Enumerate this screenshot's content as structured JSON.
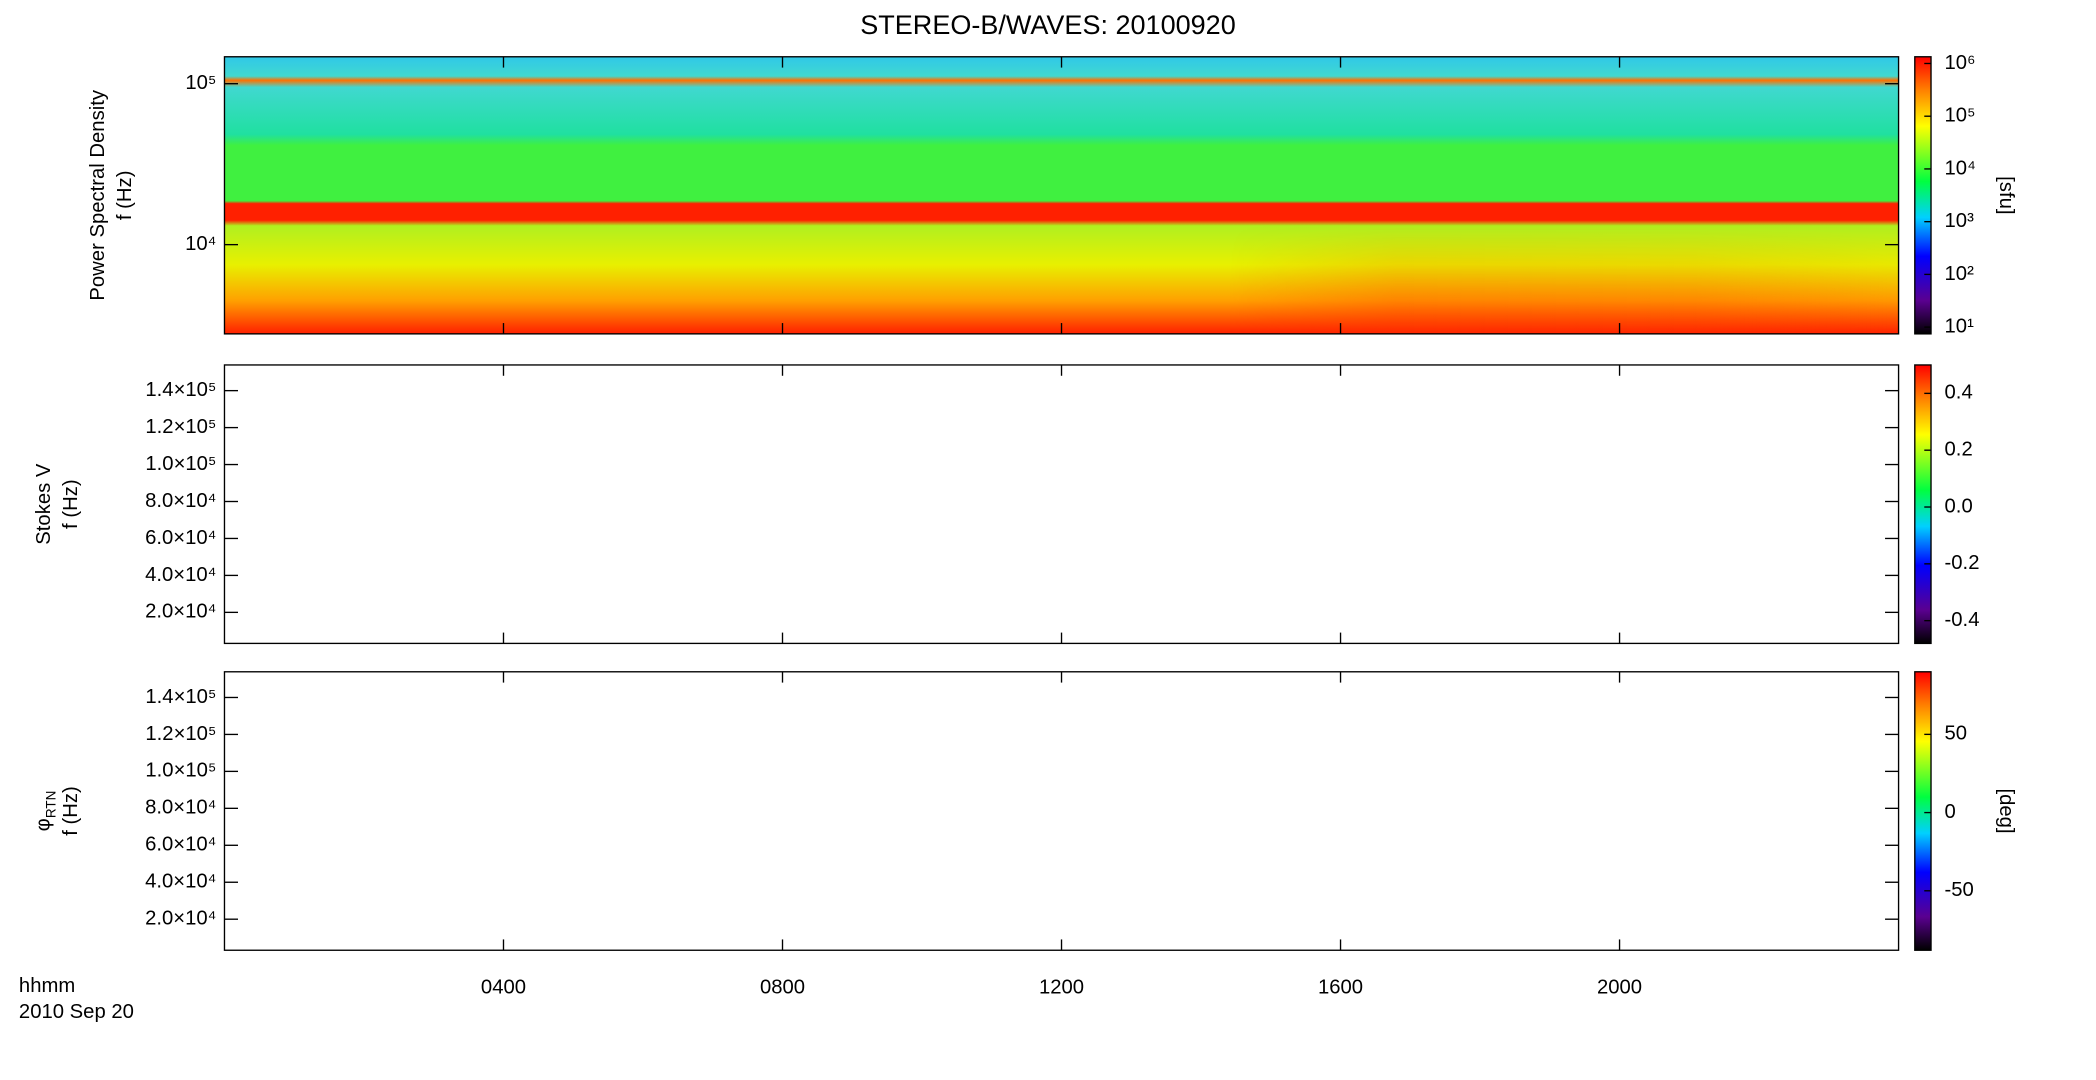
{
  "title": "STEREO-B/WAVES: 20100920",
  "time_axis": {
    "label": "hhmm",
    "date": "2010 Sep 20",
    "xlim": [
      0,
      24
    ],
    "xticks": [
      {
        "value": 4,
        "label": "0400"
      },
      {
        "value": 8,
        "label": "0800"
      },
      {
        "value": 12,
        "label": "1200"
      },
      {
        "value": 16,
        "label": "1600"
      },
      {
        "value": 20,
        "label": "2000"
      }
    ]
  },
  "chart_data": [
    {
      "type": "heatmap",
      "ylabel": [
        "Power Spectral Density",
        "f (Hz)"
      ],
      "log_scale": true,
      "ylim": [
        2790,
        147000
      ],
      "yticks": [
        {
          "value": 10000,
          "label": "10⁴"
        },
        {
          "value": 100000,
          "label": "10⁵"
        }
      ],
      "colorbar": {
        "log_scale": true,
        "clim": [
          7.45,
          1340000
        ],
        "label": "[sfu]",
        "ticks": [
          {
            "value": 10,
            "label": "10¹"
          },
          {
            "value": 100,
            "label": "10²"
          },
          {
            "value": 1000,
            "label": "10³"
          },
          {
            "value": 10000,
            "label": "10⁴"
          },
          {
            "value": 100000,
            "label": "10⁵"
          },
          {
            "value": 1000000,
            "label": "10⁶"
          }
        ]
      }
    },
    {
      "type": "heatmap",
      "ylabel": [
        "Stokes V",
        "f (Hz)"
      ],
      "log_scale": false,
      "ylim": [
        3200,
        153900
      ],
      "yticks": [
        {
          "value": 20000,
          "label": "2.0×10⁴"
        },
        {
          "value": 40000,
          "label": "4.0×10⁴"
        },
        {
          "value": 60000,
          "label": "6.0×10⁴"
        },
        {
          "value": 80000,
          "label": "8.0×10⁴"
        },
        {
          "value": 100000,
          "label": "1.0×10⁵"
        },
        {
          "value": 120000,
          "label": "1.2×10⁵"
        },
        {
          "value": 140000,
          "label": "1.4×10⁵"
        }
      ],
      "colorbar": {
        "log_scale": false,
        "clim": [
          -0.48,
          0.5
        ],
        "ticks": [
          {
            "value": -0.4,
            "label": "-0.4"
          },
          {
            "value": -0.2,
            "label": "-0.2"
          },
          {
            "value": 0,
            "label": "0.0"
          },
          {
            "value": 0.2,
            "label": "0.2"
          },
          {
            "value": 0.4,
            "label": "0.4"
          }
        ]
      }
    },
    {
      "type": "heatmap",
      "ylabel_symbol": "φ",
      "ylabel_subscript": "RTN",
      "ylabel": [
        "f (Hz)"
      ],
      "log_scale": false,
      "ylim": [
        3200,
        153900
      ],
      "yticks": [
        {
          "value": 20000,
          "label": "2.0×10⁴"
        },
        {
          "value": 40000,
          "label": "4.0×10⁴"
        },
        {
          "value": 60000,
          "label": "6.0×10⁴"
        },
        {
          "value": 80000,
          "label": "8.0×10⁴"
        },
        {
          "value": 100000,
          "label": "1.0×10⁵"
        },
        {
          "value": 120000,
          "label": "1.2×10⁵"
        },
        {
          "value": 140000,
          "label": "1.4×10⁵"
        }
      ],
      "colorbar": {
        "log_scale": false,
        "clim": [
          -88,
          90
        ],
        "label": "[deg]",
        "ticks": [
          -50,
          0,
          50
        ]
      }
    }
  ]
}
